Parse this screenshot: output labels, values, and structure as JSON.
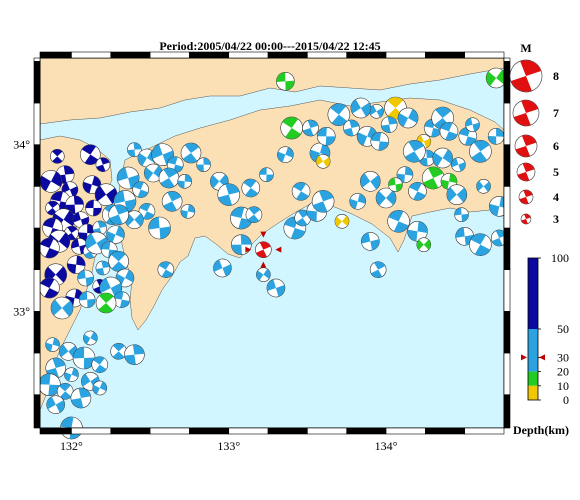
{
  "title": "Period:2005/04/22 00:00---2015/04/22 12:45",
  "x_ticks": [
    {
      "label": "132°",
      "lon": 132
    },
    {
      "label": "133°",
      "lon": 133
    },
    {
      "label": "134°",
      "lon": 134
    }
  ],
  "y_ticks": [
    {
      "label": "34°",
      "lat": 34
    },
    {
      "label": "33°",
      "lat": 33
    }
  ],
  "extent": {
    "lon": [
      131.8,
      134.75
    ],
    "lat": [
      32.3,
      34.52
    ]
  },
  "magnitude_legend": {
    "title": "M",
    "items": [
      "8",
      "7",
      "6",
      "5",
      "4",
      "3"
    ]
  },
  "depth_scale": {
    "labels": [
      "100",
      "50",
      "30",
      "20",
      "10",
      "0"
    ],
    "unit_label": "Depth(km)",
    "colors": {
      "deep": "#0a0aa0",
      "mid": "#2aa3e0",
      "shallow_green": "#22cc22",
      "shallow_yellow": "#f0c800"
    },
    "marker_depth_km": 30
  },
  "colors": {
    "land": "#fae0b4",
    "sea": "#d2f6ff",
    "highlight": "#e01010"
  },
  "chart_data": {
    "type": "scatter",
    "highlight_event": {
      "lon": 133.22,
      "lat": 33.37
    },
    "events": [
      {
        "lon": 131.91,
        "lat": 33.93,
        "depth": "deep"
      },
      {
        "lon": 131.96,
        "lat": 33.82,
        "depth": "deep"
      },
      {
        "lon": 131.87,
        "lat": 33.78,
        "depth": "deep"
      },
      {
        "lon": 131.99,
        "lat": 33.73,
        "depth": "deep"
      },
      {
        "lon": 131.93,
        "lat": 33.66,
        "depth": "deep"
      },
      {
        "lon": 131.88,
        "lat": 33.62,
        "depth": "deep"
      },
      {
        "lon": 132.02,
        "lat": 33.64,
        "depth": "deep"
      },
      {
        "lon": 131.95,
        "lat": 33.55,
        "depth": "deep"
      },
      {
        "lon": 132.06,
        "lat": 33.55,
        "depth": "deep"
      },
      {
        "lon": 131.88,
        "lat": 33.5,
        "depth": "deep"
      },
      {
        "lon": 132.0,
        "lat": 33.47,
        "depth": "deep"
      },
      {
        "lon": 132.1,
        "lat": 33.47,
        "depth": "deep"
      },
      {
        "lon": 131.92,
        "lat": 33.42,
        "depth": "deep"
      },
      {
        "lon": 132.05,
        "lat": 33.39,
        "depth": "deep"
      },
      {
        "lon": 131.86,
        "lat": 33.38,
        "depth": "deep"
      },
      {
        "lon": 132.12,
        "lat": 33.36,
        "depth": "mid"
      },
      {
        "lon": 132.03,
        "lat": 33.28,
        "depth": "deep"
      },
      {
        "lon": 131.9,
        "lat": 33.22,
        "depth": "deep"
      },
      {
        "lon": 132.09,
        "lat": 33.2,
        "depth": "mid"
      },
      {
        "lon": 131.86,
        "lat": 33.14,
        "depth": "deep"
      },
      {
        "lon": 132.18,
        "lat": 33.15,
        "depth": "deep"
      },
      {
        "lon": 132.02,
        "lat": 33.08,
        "depth": "deep"
      },
      {
        "lon": 131.94,
        "lat": 33.02,
        "depth": "mid"
      },
      {
        "lon": 132.1,
        "lat": 33.07,
        "depth": "mid"
      },
      {
        "lon": 132.12,
        "lat": 33.94,
        "depth": "deep"
      },
      {
        "lon": 132.2,
        "lat": 33.88,
        "depth": "deep"
      },
      {
        "lon": 132.13,
        "lat": 33.76,
        "depth": "deep"
      },
      {
        "lon": 132.22,
        "lat": 33.7,
        "depth": "deep"
      },
      {
        "lon": 132.14,
        "lat": 33.62,
        "depth": "deep"
      },
      {
        "lon": 132.26,
        "lat": 33.58,
        "depth": "mid"
      },
      {
        "lon": 132.18,
        "lat": 33.5,
        "depth": "mid"
      },
      {
        "lon": 132.28,
        "lat": 33.46,
        "depth": "mid"
      },
      {
        "lon": 132.16,
        "lat": 33.41,
        "depth": "mid"
      },
      {
        "lon": 132.24,
        "lat": 33.37,
        "depth": "mid"
      },
      {
        "lon": 132.3,
        "lat": 33.3,
        "depth": "mid"
      },
      {
        "lon": 132.2,
        "lat": 33.26,
        "depth": "mid"
      },
      {
        "lon": 132.34,
        "lat": 33.2,
        "depth": "mid"
      },
      {
        "lon": 132.25,
        "lat": 33.14,
        "depth": "mid"
      },
      {
        "lon": 132.32,
        "lat": 33.07,
        "depth": "mid"
      },
      {
        "lon": 132.22,
        "lat": 33.05,
        "depth": "shallow_green"
      },
      {
        "lon": 132.4,
        "lat": 33.97,
        "depth": "mid"
      },
      {
        "lon": 132.48,
        "lat": 33.92,
        "depth": "mid"
      },
      {
        "lon": 132.58,
        "lat": 33.94,
        "depth": "mid"
      },
      {
        "lon": 132.66,
        "lat": 33.88,
        "depth": "mid"
      },
      {
        "lon": 132.76,
        "lat": 33.95,
        "depth": "mid"
      },
      {
        "lon": 132.84,
        "lat": 33.88,
        "depth": "mid"
      },
      {
        "lon": 132.52,
        "lat": 33.83,
        "depth": "mid"
      },
      {
        "lon": 132.36,
        "lat": 33.8,
        "depth": "mid"
      },
      {
        "lon": 132.44,
        "lat": 33.73,
        "depth": "mid"
      },
      {
        "lon": 132.62,
        "lat": 33.8,
        "depth": "mid"
      },
      {
        "lon": 132.72,
        "lat": 33.78,
        "depth": "mid"
      },
      {
        "lon": 132.94,
        "lat": 33.78,
        "depth": "mid"
      },
      {
        "lon": 132.34,
        "lat": 33.66,
        "depth": "mid"
      },
      {
        "lon": 132.48,
        "lat": 33.6,
        "depth": "mid"
      },
      {
        "lon": 132.64,
        "lat": 33.66,
        "depth": "mid"
      },
      {
        "lon": 132.74,
        "lat": 33.6,
        "depth": "mid"
      },
      {
        "lon": 132.4,
        "lat": 33.55,
        "depth": "mid"
      },
      {
        "lon": 132.56,
        "lat": 33.5,
        "depth": "mid"
      },
      {
        "lon": 132.6,
        "lat": 33.25,
        "depth": "mid"
      },
      {
        "lon": 132.3,
        "lat": 33.58,
        "depth": "mid"
      },
      {
        "lon": 131.88,
        "lat": 32.8,
        "depth": "mid"
      },
      {
        "lon": 131.98,
        "lat": 32.76,
        "depth": "mid"
      },
      {
        "lon": 132.08,
        "lat": 32.72,
        "depth": "mid"
      },
      {
        "lon": 132.18,
        "lat": 32.68,
        "depth": "mid"
      },
      {
        "lon": 131.9,
        "lat": 32.66,
        "depth": "mid"
      },
      {
        "lon": 132.0,
        "lat": 32.62,
        "depth": "mid"
      },
      {
        "lon": 132.12,
        "lat": 32.58,
        "depth": "mid"
      },
      {
        "lon": 131.86,
        "lat": 32.56,
        "depth": "mid"
      },
      {
        "lon": 131.96,
        "lat": 32.52,
        "depth": "mid"
      },
      {
        "lon": 132.06,
        "lat": 32.48,
        "depth": "mid"
      },
      {
        "lon": 132.18,
        "lat": 32.54,
        "depth": "mid"
      },
      {
        "lon": 131.9,
        "lat": 32.44,
        "depth": "mid"
      },
      {
        "lon": 132.0,
        "lat": 32.3,
        "depth": "mid"
      },
      {
        "lon": 132.3,
        "lat": 32.76,
        "depth": "mid"
      },
      {
        "lon": 132.4,
        "lat": 32.74,
        "depth": "mid"
      },
      {
        "lon": 132.12,
        "lat": 32.84,
        "depth": "mid"
      },
      {
        "lon": 132.96,
        "lat": 33.26,
        "depth": "mid"
      },
      {
        "lon": 133.08,
        "lat": 33.56,
        "depth": "mid"
      },
      {
        "lon": 133.16,
        "lat": 33.58,
        "depth": "mid"
      },
      {
        "lon": 133.08,
        "lat": 33.4,
        "depth": "mid"
      },
      {
        "lon": 133.22,
        "lat": 33.22,
        "depth": "mid"
      },
      {
        "lon": 133.3,
        "lat": 33.14,
        "depth": "mid"
      },
      {
        "lon": 133.42,
        "lat": 33.5,
        "depth": "mid"
      },
      {
        "lon": 133.47,
        "lat": 33.56,
        "depth": "mid"
      },
      {
        "lon": 133.56,
        "lat": 33.6,
        "depth": "mid"
      },
      {
        "lon": 133.72,
        "lat": 33.54,
        "depth": "shallow_yellow"
      },
      {
        "lon": 133.9,
        "lat": 33.42,
        "depth": "mid"
      },
      {
        "lon": 134.08,
        "lat": 33.54,
        "depth": "mid"
      },
      {
        "lon": 133.95,
        "lat": 33.25,
        "depth": "mid"
      },
      {
        "lon": 134.2,
        "lat": 33.48,
        "depth": "mid"
      },
      {
        "lon": 134.24,
        "lat": 33.4,
        "depth": "shallow_green"
      },
      {
        "lon": 134.5,
        "lat": 33.45,
        "depth": "mid"
      },
      {
        "lon": 134.6,
        "lat": 33.4,
        "depth": "mid"
      },
      {
        "lon": 134.72,
        "lat": 33.44,
        "depth": "mid"
      },
      {
        "lon": 134.72,
        "lat": 33.63,
        "depth": "mid"
      },
      {
        "lon": 134.62,
        "lat": 33.75,
        "depth": "mid"
      },
      {
        "lon": 133.36,
        "lat": 34.38,
        "depth": "shallow_green"
      },
      {
        "lon": 133.4,
        "lat": 34.1,
        "depth": "shallow_green"
      },
      {
        "lon": 133.52,
        "lat": 34.1,
        "depth": "mid"
      },
      {
        "lon": 133.58,
        "lat": 33.95,
        "depth": "mid"
      },
      {
        "lon": 133.6,
        "lat": 33.9,
        "depth": "shallow_yellow"
      },
      {
        "lon": 133.62,
        "lat": 34.05,
        "depth": "mid"
      },
      {
        "lon": 133.7,
        "lat": 34.18,
        "depth": "mid"
      },
      {
        "lon": 133.78,
        "lat": 34.1,
        "depth": "mid"
      },
      {
        "lon": 133.88,
        "lat": 34.05,
        "depth": "mid"
      },
      {
        "lon": 133.94,
        "lat": 34.2,
        "depth": "mid"
      },
      {
        "lon": 133.96,
        "lat": 34.02,
        "depth": "mid"
      },
      {
        "lon": 134.06,
        "lat": 34.22,
        "depth": "shallow_yellow"
      },
      {
        "lon": 134.02,
        "lat": 34.12,
        "depth": "mid"
      },
      {
        "lon": 134.14,
        "lat": 34.16,
        "depth": "mid"
      },
      {
        "lon": 134.24,
        "lat": 34.02,
        "depth": "shallow_yellow"
      },
      {
        "lon": 134.3,
        "lat": 34.1,
        "depth": "mid"
      },
      {
        "lon": 134.36,
        "lat": 34.16,
        "depth": "mid"
      },
      {
        "lon": 134.26,
        "lat": 33.92,
        "depth": "mid"
      },
      {
        "lon": 134.36,
        "lat": 33.92,
        "depth": "mid"
      },
      {
        "lon": 134.46,
        "lat": 33.88,
        "depth": "mid"
      },
      {
        "lon": 134.52,
        "lat": 34.05,
        "depth": "mid"
      },
      {
        "lon": 134.6,
        "lat": 33.96,
        "depth": "mid"
      },
      {
        "lon": 134.7,
        "lat": 34.05,
        "depth": "mid"
      },
      {
        "lon": 134.7,
        "lat": 34.4,
        "depth": "shallow_green"
      },
      {
        "lon": 134.55,
        "lat": 34.12,
        "depth": "mid"
      },
      {
        "lon": 134.4,
        "lat": 34.08,
        "depth": "mid"
      },
      {
        "lon": 134.18,
        "lat": 33.96,
        "depth": "mid"
      },
      {
        "lon": 134.12,
        "lat": 33.82,
        "depth": "mid"
      },
      {
        "lon": 134.0,
        "lat": 33.68,
        "depth": "mid"
      },
      {
        "lon": 134.06,
        "lat": 33.76,
        "depth": "shallow_green"
      },
      {
        "lon": 134.2,
        "lat": 33.72,
        "depth": "mid"
      },
      {
        "lon": 134.3,
        "lat": 33.8,
        "depth": "shallow_green"
      },
      {
        "lon": 134.4,
        "lat": 33.78,
        "depth": "shallow_green"
      },
      {
        "lon": 134.45,
        "lat": 33.7,
        "depth": "mid"
      },
      {
        "lon": 134.48,
        "lat": 33.58,
        "depth": "mid"
      },
      {
        "lon": 133.46,
        "lat": 33.72,
        "depth": "mid"
      },
      {
        "lon": 133.6,
        "lat": 33.66,
        "depth": "mid"
      },
      {
        "lon": 133.82,
        "lat": 33.66,
        "depth": "mid"
      },
      {
        "lon": 133.9,
        "lat": 33.78,
        "depth": "mid"
      },
      {
        "lon": 133.24,
        "lat": 33.82,
        "depth": "mid"
      },
      {
        "lon": 133.14,
        "lat": 33.74,
        "depth": "mid"
      },
      {
        "lon": 133.0,
        "lat": 33.7,
        "depth": "mid"
      },
      {
        "lon": 133.36,
        "lat": 33.94,
        "depth": "mid"
      },
      {
        "lon": 133.84,
        "lat": 34.22,
        "depth": "mid"
      }
    ]
  }
}
